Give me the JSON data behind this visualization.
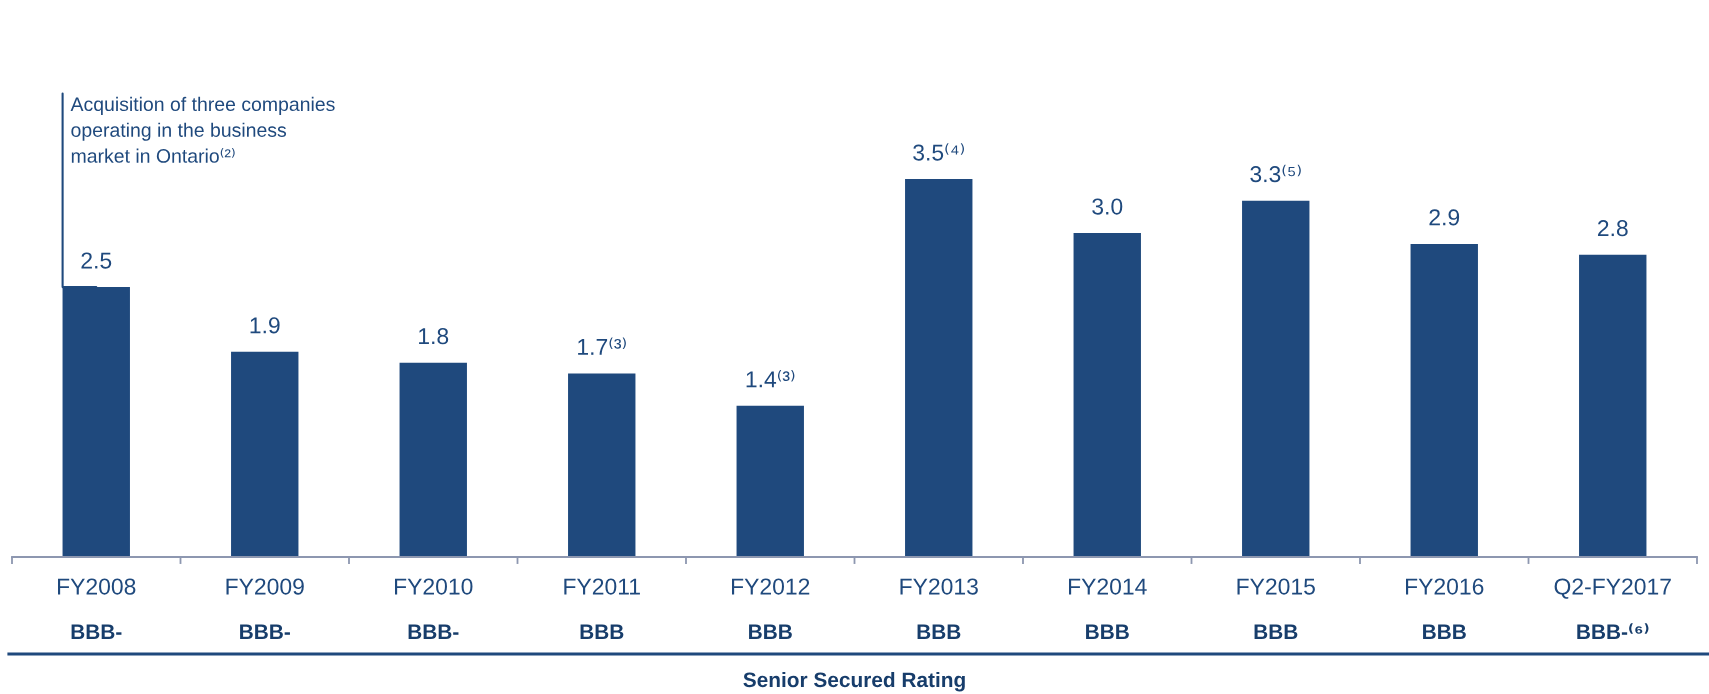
{
  "chart_data": {
    "type": "bar",
    "categories": [
      "FY2008",
      "FY2009",
      "FY2010",
      "FY2011",
      "FY2012",
      "FY2013",
      "FY2014",
      "FY2015",
      "FY2016",
      "Q2-FY2017"
    ],
    "values": [
      2.5,
      1.9,
      1.8,
      1.7,
      1.4,
      3.5,
      3.0,
      3.3,
      2.9,
      2.8
    ],
    "color": "#1f497d",
    "value_labels": [
      "2.5",
      "1.9",
      "1.8",
      "1.7⁽³⁾",
      "1.4⁽³⁾",
      "3.5⁽⁴⁾",
      "3.0",
      "3.3⁽⁵⁾",
      "2.9",
      "2.8"
    ],
    "annotations": [
      {
        "text": "Acquisition of three companies\noperating in the business\nmarket in Ontario⁽²⁾",
        "x": "FY2008",
        "y": 2.5
      },
      "BBB-",
      "BBB-",
      "BBB-",
      "BBB",
      "BBB",
      "BBB",
      "BBB",
      "BBB",
      "BBB",
      "BBB-⁽⁶⁾",
      "Senior Secured Rating"
    ]
  }
}
